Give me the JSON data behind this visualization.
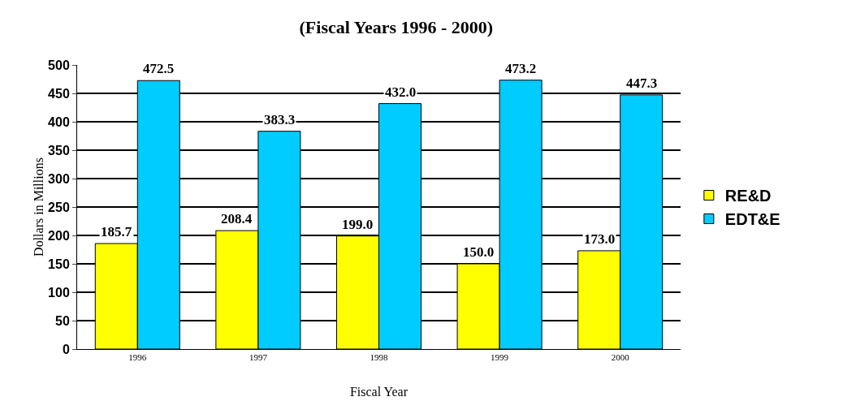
{
  "chart_data": {
    "type": "bar",
    "title": "(Fiscal Years 1996 - 2000)",
    "xlabel": "Fiscal Year",
    "ylabel": "Dollars in Millions",
    "categories": [
      "1996",
      "1997",
      "1998",
      "1999",
      "2000"
    ],
    "series": [
      {
        "name": "RE&D",
        "color": "#ffff00",
        "values": [
          185.7,
          208.4,
          199.0,
          150.0,
          173.0
        ],
        "value_labels": [
          "185.7",
          "208.4",
          "199.0",
          "150.0",
          "173.0"
        ]
      },
      {
        "name": "EDT&E",
        "color": "#00ccff",
        "values": [
          472.5,
          383.3,
          432.0,
          473.2,
          447.3
        ],
        "value_labels": [
          "472.5",
          "383.3",
          "432.0",
          "473.2",
          "447.3"
        ]
      }
    ],
    "ylim": [
      0,
      500
    ],
    "yticks": [
      0,
      50,
      100,
      150,
      200,
      250,
      300,
      350,
      400,
      450,
      500
    ],
    "grid": "y",
    "legend": "right"
  }
}
